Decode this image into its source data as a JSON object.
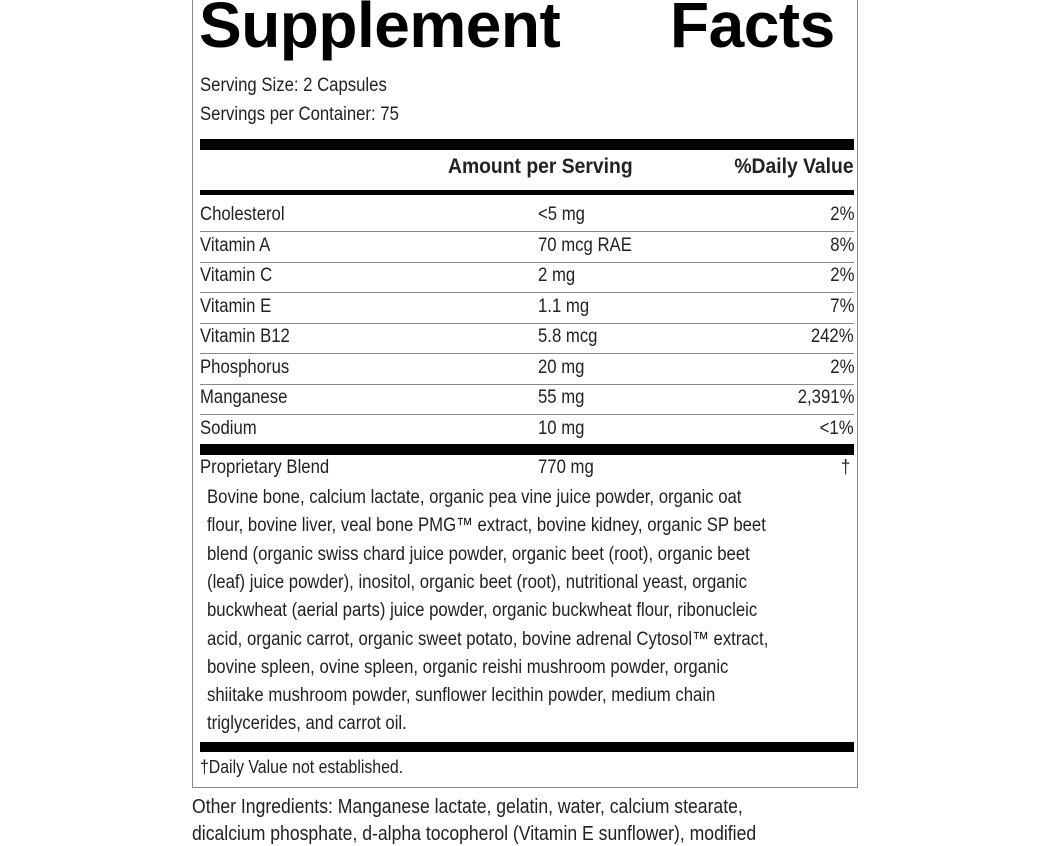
{
  "title_word1": "Supplement",
  "title_word2": "Facts",
  "serving_size": "Serving Size: 2 Capsules",
  "servings_per_container": "Servings per Container: 75",
  "columns": {
    "amount": "Amount per Serving",
    "dv": "%Daily Value"
  },
  "rows": [
    {
      "name": "Cholesterol",
      "amount": "<5 mg",
      "dv": "2%"
    },
    {
      "name": "Vitamin A",
      "amount": "70 mcg RAE",
      "dv": "8%"
    },
    {
      "name": "Vitamin C",
      "amount": "2 mg",
      "dv": "2%"
    },
    {
      "name": "Vitamin E",
      "amount": "1.1 mg",
      "dv": "7%"
    },
    {
      "name": "Vitamin B12",
      "amount": "5.8 mcg",
      "dv": "242%"
    },
    {
      "name": "Phosphorus",
      "amount": "20 mg",
      "dv": "2%"
    },
    {
      "name": "Manganese",
      "amount": "55 mg",
      "dv": "2,391%"
    },
    {
      "name": "Sodium",
      "amount": "10 mg",
      "dv": "<1%"
    }
  ],
  "blend": {
    "name": "Proprietary Blend",
    "amount": "770 mg",
    "dv": "†"
  },
  "blend_lines": [
    "Bovine bone, calcium lactate, organic pea vine juice powder, organic oat",
    "flour, bovine liver, veal bone PMG™ extract, bovine kidney, organic SP beet",
    "blend (organic swiss chard juice powder, organic beet (root), organic beet",
    "(leaf) juice powder), inositol, organic beet (root), nutritional yeast, organic",
    "buckwheat (aerial parts) juice powder, organic buckwheat flour, ribonucleic",
    "acid, organic carrot, organic sweet potato, bovine adrenal Cytosol™ extract,",
    "bovine spleen, ovine spleen, organic reishi mushroom powder, organic",
    "shiitake mushroom powder, sunflower lecithin powder, medium chain",
    "triglycerides, and carrot oil."
  ],
  "footnote": "†Daily Value not established.",
  "other_lines": [
    "Other Ingredients: Manganese lactate, gelatin, water, calcium stearate,",
    "dicalcium phosphate, d-alpha tocopherol (Vitamin E sunflower), modified"
  ]
}
